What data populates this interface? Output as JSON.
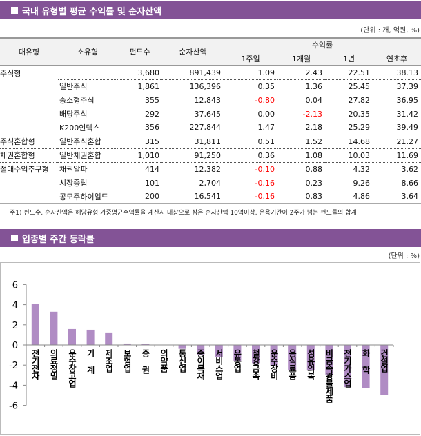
{
  "section1": {
    "title": "국내 유형별 평균 수익률 및 순자산액",
    "unit": "(단위 : 개, 억원, %)",
    "headers": {
      "major": "대유형",
      "minor": "소유형",
      "funds": "펀드수",
      "nav": "순자산액",
      "returns": "수익률",
      "w1": "1주일",
      "m1": "1개월",
      "y1": "1년",
      "ytd": "연초후"
    },
    "rows": [
      {
        "major": "주식형",
        "minor": "",
        "funds": "3,680",
        "nav": "891,439",
        "w1": "1.09",
        "m1": "2.43",
        "y1": "22.51",
        "ytd": "38.13"
      },
      {
        "major": "",
        "minor": "일반주식",
        "funds": "1,861",
        "nav": "136,396",
        "w1": "0.35",
        "m1": "1.36",
        "y1": "25.45",
        "ytd": "37.39"
      },
      {
        "major": "",
        "minor": "중소형주식",
        "funds": "355",
        "nav": "12,843",
        "w1": "-0.80",
        "m1": "0.04",
        "y1": "27.82",
        "ytd": "36.95"
      },
      {
        "major": "",
        "minor": "배당주식",
        "funds": "292",
        "nav": "37,645",
        "w1": "0.00",
        "m1": "-2.13",
        "y1": "20.35",
        "ytd": "31.42"
      },
      {
        "major": "",
        "minor": "K200인덱스",
        "funds": "356",
        "nav": "227,844",
        "w1": "1.47",
        "m1": "2.18",
        "y1": "25.29",
        "ytd": "39.49"
      },
      {
        "major": "주식혼합형",
        "minor": "일반주식혼합",
        "funds": "315",
        "nav": "31,811",
        "w1": "0.51",
        "m1": "1.52",
        "y1": "14.68",
        "ytd": "21.27"
      },
      {
        "major": "채권혼합형",
        "minor": "일반채권혼합",
        "funds": "1,010",
        "nav": "91,250",
        "w1": "0.36",
        "m1": "1.08",
        "y1": "10.03",
        "ytd": "11.69"
      },
      {
        "major": "절대수익추구형",
        "minor": "채권알파",
        "funds": "414",
        "nav": "12,382",
        "w1": "-0.10",
        "m1": "0.88",
        "y1": "4.32",
        "ytd": "3.62"
      },
      {
        "major": "",
        "minor": "시장중립",
        "funds": "101",
        "nav": "2,704",
        "w1": "-0.16",
        "m1": "0.23",
        "y1": "9.26",
        "ytd": "8.66"
      },
      {
        "major": "",
        "minor": "공모주하이일드",
        "funds": "200",
        "nav": "16,541",
        "w1": "-0.16",
        "m1": "0.83",
        "y1": "4.86",
        "ytd": "3.64"
      }
    ],
    "note": "주1) 펀드수, 순자산액은 해당유형 가중평균수익률을 계산시 대상으로 삼은 순자산액 10억이상, 운용기간이 2주가 넘는 펀드들의 합계"
  },
  "section2": {
    "title": "업종별 주간 등락률",
    "unit": "(단위 : %)"
  },
  "colors": {
    "header_bar": "#835396",
    "bar": "#b08cc4",
    "negative": "#ff0000"
  },
  "chart_data": {
    "type": "bar",
    "ylim": [
      -6,
      6
    ],
    "yticks": [
      "6",
      "4",
      "2",
      "0",
      "-2",
      "-4",
      "-6"
    ],
    "grid": false,
    "categories": [
      "전기전자",
      "의료정밀",
      "운수창고업",
      "기 계",
      "제조업",
      "보험업",
      "증 권",
      "의약품",
      "통신업",
      "종이목재",
      "서비스업",
      "유통업",
      "철강금속",
      "운수장비",
      "음식료품",
      "섬유의복",
      "비금속광물제품",
      "전기가스업",
      "화 학",
      "건설업"
    ],
    "values": [
      4.05,
      3.3,
      1.58,
      1.51,
      1.24,
      0.14,
      0.07,
      0.0,
      -0.39,
      -0.94,
      -1.17,
      -1.62,
      -1.81,
      -2.04,
      -2.49,
      -2.54,
      -3.0,
      -4.19,
      -4.26,
      -4.99
    ]
  }
}
